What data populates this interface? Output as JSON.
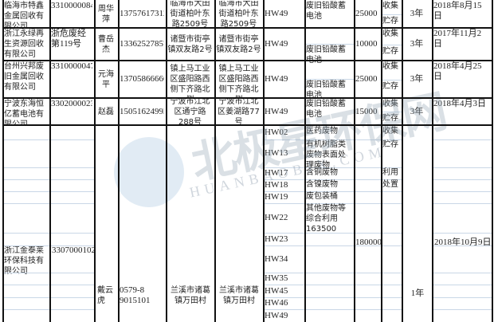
{
  "rows": [
    {
      "company": "临海市特鑫金属回收有限公司",
      "code": "3310000084",
      "contact": "周华萍",
      "phone": "13757617312",
      "address1": "临海市大田街道柏叶东路2509号",
      "address2": "临海市大田街道柏叶东路2509号",
      "hw": "HW49",
      "waste": "废旧铅酸蓄电池",
      "capacity": "25000",
      "mode1": "收集",
      "mode2": "贮存",
      "term": "3年",
      "date": "2018年8月15日"
    },
    {
      "company": "浙江永绿再生资源回收有限公司",
      "code": "浙危废经第119号",
      "contact": "曹岳杰",
      "phone": "13362527857",
      "address1": "诸暨市街亭镇双友路2号",
      "address2": "诸暨市街亭镇双友路2号",
      "hw": "HW49",
      "waste": "废旧铅酸蓄电池",
      "capacity": "10000",
      "mode1": "收集",
      "mode2": "贮存",
      "term": "3年",
      "date": "2017年11月2日"
    },
    {
      "company": "台州兴邦废旧金属回收有限公司",
      "code": "3310000047",
      "contact": "元海平",
      "phone": "13705866666",
      "address1": "温岭市石塘镇上马工业区盛阳路西侧下齐路北侧",
      "address2": "温岭市石塘镇上马工业区盛阳路西侧下齐路北侧",
      "hw": "HW49",
      "waste": "废旧铅酸蓄电池",
      "capacity": "25000",
      "mode1": "收集",
      "mode2": "贮存",
      "term": "3年",
      "date": "2018年4月25日"
    },
    {
      "company": "宁波东海恒亿蓄电池有限公司",
      "code": "3302000023",
      "contact": "赵磊",
      "phone": "15051624993",
      "address1": "宁波市江北区通宁路288号",
      "address2": "宁波市江北区姜湖路77号",
      "hw": "HW49",
      "waste": "废旧铅酸蓄电池",
      "capacity": "15000",
      "mode1": "收集",
      "mode2": "贮存",
      "term": "3年",
      "date": "2018年4月3日"
    }
  ],
  "last": {
    "company": "浙江金泰莱环保科技有限公司",
    "code": "3307000102",
    "contact": "戴云虎",
    "phone_a": "0579-8",
    "phone_b": "9015101",
    "address1": "兰溪市诸葛镇万田村",
    "address2": "兰溪市诸葛镇万田村",
    "capacity": "180000",
    "term": "1年",
    "date": "2018年10月9日",
    "hw": [
      "HW02",
      "HW13",
      "HW17",
      "HW18",
      "HW19",
      "HW22",
      "HW23",
      "HW34",
      "HW35",
      "HW45",
      "HW46",
      "HW49"
    ],
    "waste": [
      "医药废物",
      "有机树脂类废物表面处理废物",
      "含铜废物",
      "含镍废物",
      "废包装桶",
      "其他废物等综合利用163500"
    ],
    "modes": [
      "收集",
      "贮存",
      "利用",
      "处置"
    ]
  },
  "watermark": {
    "cn": "北极星环保网",
    "en": "HUANBAOBJX.COM",
    "colors": {
      "gray": "#b9c2cc",
      "green": "#8fd19e",
      "blue": "#5b8fc1"
    }
  }
}
